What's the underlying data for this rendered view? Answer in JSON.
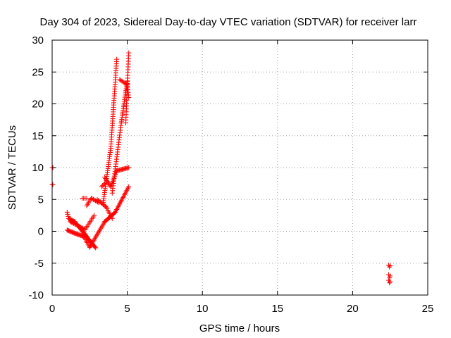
{
  "chart_data": {
    "type": "scatter",
    "title": "Day 304 of 2023, Sidereal Day-to-day VTEC variation (SDTVAR) for receiver larr",
    "xlabel": "GPS time / hours",
    "ylabel": "SDTVAR / TECUs",
    "xlim": [
      0,
      25
    ],
    "ylim": [
      -10,
      30
    ],
    "xticks": [
      0,
      5,
      10,
      15,
      20,
      25
    ],
    "yticks": [
      -10,
      -5,
      0,
      5,
      10,
      15,
      20,
      25,
      30
    ],
    "grid": true,
    "legend": "none",
    "marker": "+",
    "color": "#ff0000",
    "series": [
      {
        "points": [
          [
            0.0,
            10.0
          ],
          [
            0.05,
            10.0
          ],
          [
            0.0,
            7.3
          ],
          [
            0.05,
            7.3
          ],
          [
            22.4,
            -5.3
          ],
          [
            22.5,
            -5.4
          ],
          [
            22.45,
            -5.6
          ],
          [
            22.4,
            -6.8
          ],
          [
            22.5,
            -7.0
          ],
          [
            22.45,
            -7.3
          ],
          [
            22.4,
            -7.7
          ],
          [
            22.5,
            -7.9
          ],
          [
            22.45,
            -8.1
          ]
        ]
      }
    ],
    "segments": [
      {
        "x0": 1.0,
        "y0": 3.0,
        "x1": 1.1,
        "y1": 2.0,
        "n": 4
      },
      {
        "x0": 1.1,
        "y0": 2.0,
        "x1": 1.5,
        "y1": 1.5,
        "n": 10
      },
      {
        "x0": 1.5,
        "y0": 1.5,
        "x1": 2.2,
        "y1": -0.5,
        "n": 16
      },
      {
        "x0": 2.2,
        "y0": -0.5,
        "x1": 2.5,
        "y1": -1.5,
        "n": 8
      },
      {
        "x0": 2.5,
        "y0": -1.5,
        "x1": 2.9,
        "y1": -2.6,
        "n": 10
      },
      {
        "x0": 1.0,
        "y0": 0.2,
        "x1": 1.5,
        "y1": -0.3,
        "n": 10
      },
      {
        "x0": 1.5,
        "y0": -0.3,
        "x1": 2.1,
        "y1": -0.8,
        "n": 12
      },
      {
        "x0": 2.1,
        "y0": -0.8,
        "x1": 2.5,
        "y1": -2.5,
        "n": 8
      },
      {
        "x0": 2.5,
        "y0": -2.5,
        "x1": 3.0,
        "y1": -0.5,
        "n": 10
      },
      {
        "x0": 3.0,
        "y0": -0.5,
        "x1": 3.5,
        "y1": 1.5,
        "n": 10
      },
      {
        "x0": 1.2,
        "y0": 1.5,
        "x1": 2.2,
        "y1": 0.3,
        "n": 14
      },
      {
        "x0": 2.2,
        "y0": 0.3,
        "x1": 2.8,
        "y1": 2.5,
        "n": 10
      },
      {
        "x0": 2.0,
        "y0": 5.2,
        "x1": 2.3,
        "y1": 5.2,
        "n": 4
      },
      {
        "x0": 2.3,
        "y0": 4.0,
        "x1": 2.6,
        "y1": 5.2,
        "n": 6
      },
      {
        "x0": 2.6,
        "y0": 5.2,
        "x1": 3.1,
        "y1": 4.5,
        "n": 8
      },
      {
        "x0": 3.0,
        "y0": 5.0,
        "x1": 3.6,
        "y1": 3.8,
        "n": 10
      },
      {
        "x0": 3.6,
        "y0": 3.8,
        "x1": 4.0,
        "y1": 2.0,
        "n": 8
      },
      {
        "x0": 3.3,
        "y0": 7.0,
        "x1": 3.5,
        "y1": 7.5,
        "n": 4
      },
      {
        "x0": 3.4,
        "y0": 4.5,
        "x1": 3.9,
        "y1": 13.0,
        "n": 28
      },
      {
        "x0": 3.9,
        "y0": 13.0,
        "x1": 4.3,
        "y1": 27.0,
        "n": 40
      },
      {
        "x0": 3.5,
        "y0": 8.5,
        "x1": 3.9,
        "y1": 7.0,
        "n": 8
      },
      {
        "x0": 3.9,
        "y0": 7.0,
        "x1": 4.3,
        "y1": 9.5,
        "n": 10
      },
      {
        "x0": 4.3,
        "y0": 9.5,
        "x1": 5.1,
        "y1": 10.0,
        "n": 14
      },
      {
        "x0": 3.5,
        "y0": 1.5,
        "x1": 4.2,
        "y1": 3.0,
        "n": 14
      },
      {
        "x0": 4.2,
        "y0": 3.0,
        "x1": 5.1,
        "y1": 7.0,
        "n": 20
      },
      {
        "x0": 4.0,
        "y0": 6.0,
        "x1": 4.6,
        "y1": 17.0,
        "n": 30
      },
      {
        "x0": 4.6,
        "y0": 17.0,
        "x1": 5.0,
        "y1": 23.5,
        "n": 24
      },
      {
        "x0": 4.5,
        "y0": 23.8,
        "x1": 5.0,
        "y1": 23.0,
        "n": 8
      },
      {
        "x0": 5.0,
        "y0": 23.0,
        "x1": 5.1,
        "y1": 21.0,
        "n": 6
      },
      {
        "x0": 4.9,
        "y0": 17.0,
        "x1": 5.1,
        "y1": 28.0,
        "n": 26
      }
    ]
  }
}
